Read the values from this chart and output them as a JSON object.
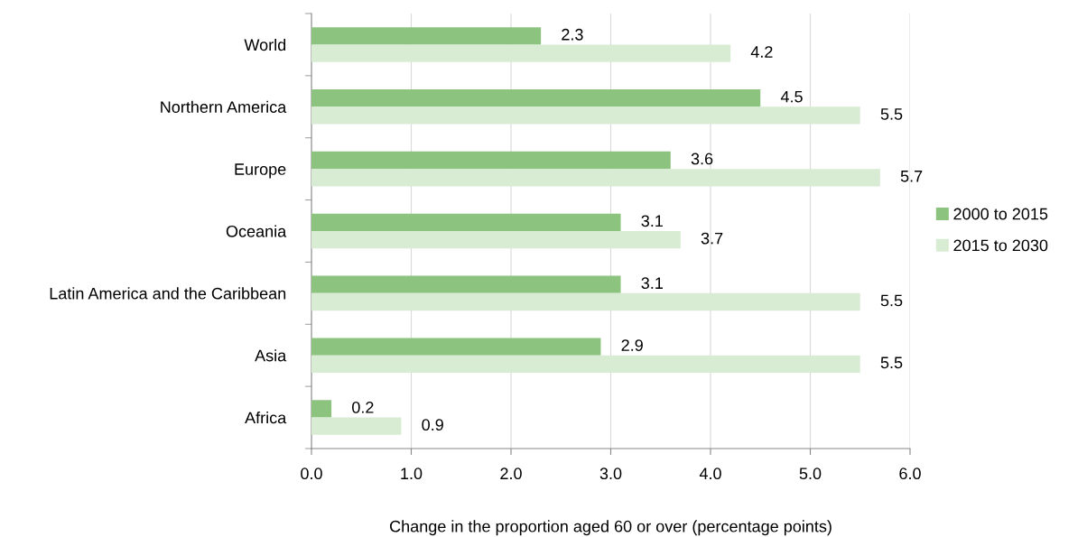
{
  "chart_data": {
    "type": "bar",
    "orientation": "horizontal",
    "xlabel": "Change in the proportion aged 60 or over (percentage points)",
    "categories": [
      "World",
      "Northern America",
      "Europe",
      "Oceania",
      "Latin America and the Caribbean",
      "Asia",
      "Africa"
    ],
    "series": [
      {
        "name": "2000 to 2015",
        "color": "#8cc37e",
        "values": [
          2.3,
          4.5,
          3.6,
          3.1,
          3.1,
          2.9,
          0.2
        ]
      },
      {
        "name": "2015 to 2030",
        "color": "#d8ebd3",
        "values": [
          4.2,
          5.5,
          5.7,
          3.7,
          5.5,
          5.5,
          0.9
        ]
      }
    ],
    "xlim": [
      0,
      6
    ],
    "xticks": [
      {
        "value": 0,
        "label": "0.0"
      },
      {
        "value": 1,
        "label": "1.0"
      },
      {
        "value": 2,
        "label": "2.0"
      },
      {
        "value": 3,
        "label": "3.0"
      },
      {
        "value": 4,
        "label": "4.0"
      },
      {
        "value": 5,
        "label": "5.0"
      },
      {
        "value": 6,
        "label": "6.0"
      }
    ],
    "grid": "x",
    "legend": "right",
    "data_labels": true
  }
}
